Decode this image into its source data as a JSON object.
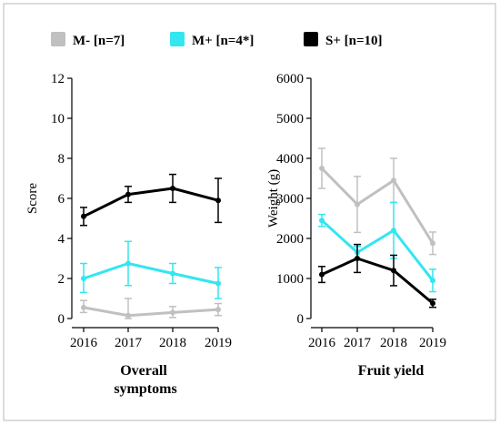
{
  "legend": [
    {
      "label": "M- [n=7]",
      "color": "#c0c0c0"
    },
    {
      "label": "M+ [n=4*]",
      "color": "#33e6f0"
    },
    {
      "label": "S+ [n=10]",
      "color": "#000000"
    }
  ],
  "chart_data": [
    {
      "type": "line",
      "title": "Overall symptoms",
      "xlabel": "",
      "ylabel": "Score",
      "categories": [
        "2016",
        "2017",
        "2018",
        "2019"
      ],
      "ylim": [
        0,
        12
      ],
      "yticks": [
        0,
        2,
        4,
        6,
        8,
        10,
        12
      ],
      "series": [
        {
          "name": "M- [n=7]",
          "color": "#c0c0c0",
          "values": [
            0.55,
            0.15,
            0.3,
            0.45
          ],
          "err_low": [
            0.25,
            0.15,
            0.25,
            0.3
          ],
          "err_high": [
            0.35,
            0.85,
            0.3,
            0.3
          ]
        },
        {
          "name": "M+ [n=4*]",
          "color": "#33e6f0",
          "values": [
            2.0,
            2.75,
            2.25,
            1.75
          ],
          "err_low": [
            0.7,
            1.1,
            0.5,
            0.75
          ],
          "err_high": [
            0.75,
            1.1,
            0.5,
            0.8
          ]
        },
        {
          "name": "S+ [n=10]",
          "color": "#000000",
          "values": [
            5.1,
            6.2,
            6.5,
            5.9
          ],
          "err_low": [
            0.45,
            0.4,
            0.7,
            1.1
          ],
          "err_high": [
            0.45,
            0.4,
            0.7,
            1.1
          ]
        }
      ]
    },
    {
      "type": "line",
      "title": "Fruit yield",
      "xlabel": "",
      "ylabel": "Weight (g)",
      "categories": [
        "2016",
        "2017",
        "2018",
        "2019"
      ],
      "ylim": [
        0,
        6000
      ],
      "yticks": [
        0,
        1000,
        2000,
        3000,
        4000,
        5000,
        6000
      ],
      "series": [
        {
          "name": "M- [n=7]",
          "color": "#c0c0c0",
          "values": [
            3750,
            2850,
            3450,
            1880
          ],
          "err_low": [
            500,
            700,
            550,
            280
          ],
          "err_high": [
            500,
            700,
            550,
            280
          ]
        },
        {
          "name": "M+ [n=4*]",
          "color": "#33e6f0",
          "values": [
            2450,
            1650,
            2200,
            950
          ],
          "err_low": [
            150,
            150,
            700,
            280
          ],
          "err_high": [
            150,
            150,
            700,
            280
          ]
        },
        {
          "name": "S+ [n=10]",
          "color": "#000000",
          "values": [
            1100,
            1500,
            1200,
            380
          ],
          "err_low": [
            200,
            350,
            380,
            100
          ],
          "err_high": [
            200,
            350,
            380,
            100
          ]
        }
      ]
    }
  ]
}
